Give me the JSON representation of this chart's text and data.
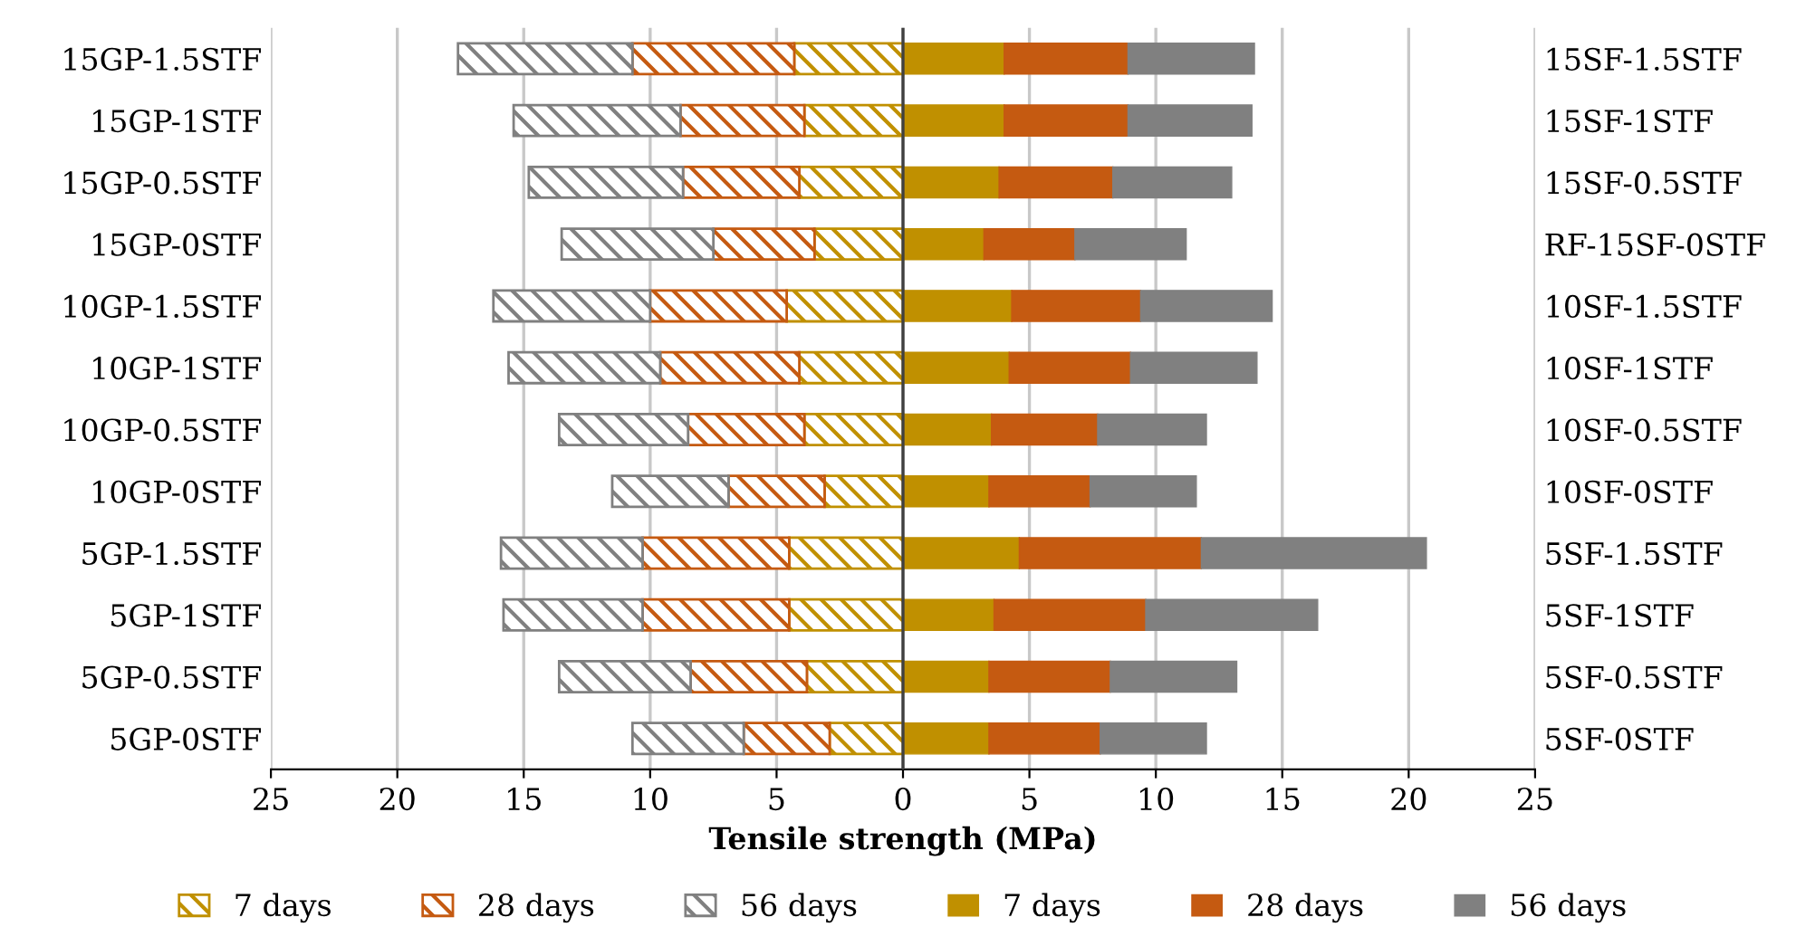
{
  "chart_data": {
    "type": "bar",
    "orientation": "horizontal",
    "stacked": true,
    "categories": [
      "15GP-1.5STF",
      "15GP-1STF",
      "15GP-0.5STF",
      "15GP-0STF",
      "10GP-1.5STF",
      "10GP-1STF",
      "10GP-0.5STF",
      "10GP-0STF",
      "5GP-1.5STF",
      "5GP-1STF",
      "5GP-0.5STF",
      "5GP-0STF"
    ],
    "y2_categories": [
      "15SF-1.5STF",
      "15SF-1STF",
      "15SF-0.5STF",
      "RF-15SF-0STF",
      "10SF-1.5STF",
      "10SF-1STF",
      "10SF-0.5STF",
      "10SF-0STF",
      "5SF-1.5STF",
      "5SF-1STF",
      "5SF-0.5STF",
      "5SF-0STF"
    ],
    "xlabel": "Tensile strength (MPa)",
    "xlim": [
      -25,
      25
    ],
    "xticks": [
      {
        "value": -25,
        "label": "25"
      },
      {
        "value": -20,
        "label": "20"
      },
      {
        "value": -15,
        "label": "15"
      },
      {
        "value": -10,
        "label": "10"
      },
      {
        "value": -5,
        "label": "5"
      },
      0,
      5,
      10,
      15,
      20,
      25
    ],
    "grid": "x",
    "legend": "bottom",
    "ref_lines": [
      {
        "axis": "x",
        "value": 0,
        "color": "#404040"
      }
    ],
    "series": [
      {
        "name": "7 days",
        "color": "#c09000",
        "values": [
          -4.3,
          -3.9,
          -4.1,
          -3.5,
          -4.6,
          -4.1,
          -3.9,
          -3.1,
          -4.5,
          -4.5,
          -3.8,
          -2.9
        ]
      },
      {
        "name": "28 days",
        "color": "#c55a11",
        "values": [
          -6.4,
          -4.9,
          -4.6,
          -4.0,
          -5.4,
          -5.5,
          -4.6,
          -3.8,
          -5.8,
          -5.8,
          -4.6,
          -3.4
        ]
      },
      {
        "name": "56 days",
        "color": "#808080",
        "values": [
          -6.9,
          -6.6,
          -6.1,
          -6.0,
          -6.2,
          -6.0,
          -5.1,
          -4.6,
          -5.6,
          -5.5,
          -5.2,
          -4.4
        ]
      },
      {
        "name": "7 days",
        "color": "#c09000",
        "values": [
          4.0,
          4.0,
          3.8,
          3.2,
          4.3,
          4.2,
          3.5,
          3.4,
          4.6,
          3.6,
          3.4,
          3.4
        ]
      },
      {
        "name": "28 days",
        "color": "#c55a11",
        "values": [
          4.9,
          4.9,
          4.5,
          3.6,
          5.1,
          4.8,
          4.2,
          4.0,
          7.2,
          6.0,
          4.8,
          4.4
        ]
      },
      {
        "name": "56 days",
        "color": "#808080",
        "values": [
          5.0,
          4.9,
          4.7,
          4.4,
          5.2,
          5.0,
          4.3,
          4.2,
          8.9,
          6.8,
          5.0,
          4.2
        ]
      }
    ]
  }
}
